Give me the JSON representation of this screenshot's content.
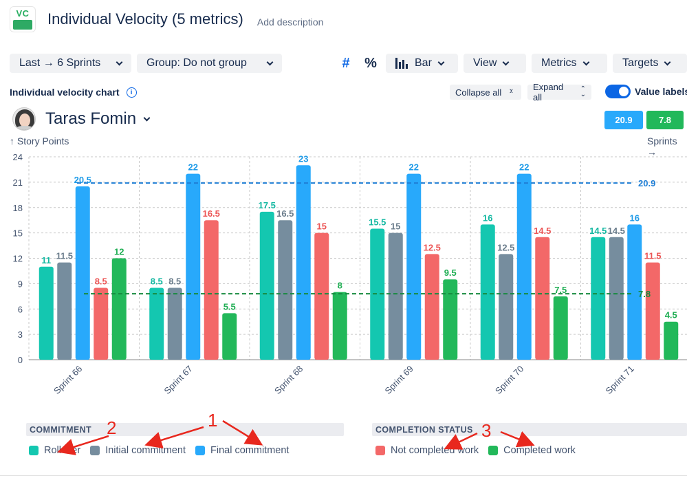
{
  "header": {
    "title": "Individual Velocity (5 metrics)",
    "add_description": "Add description",
    "logo_text": "VC"
  },
  "toolbar": {
    "range_label": "Last → 6 Sprints",
    "group_label": "Group: Do not group",
    "hash_icon": "#",
    "percent_icon": "%",
    "chart_type_label": "Bar",
    "view_label": "View",
    "metrics_label": "Metrics",
    "targets_label": "Targets"
  },
  "subheader": {
    "chart_title": "Individual velocity chart",
    "collapse_all": "Collapse all",
    "expand_all": "Expand all",
    "value_labels": "Value labels"
  },
  "person": {
    "name": "Taras Fomin"
  },
  "averages": {
    "final_commitment_avg": "20.9",
    "completed_avg": "7.8"
  },
  "colors": {
    "rollover": "#14c7b0",
    "initial": "#768d9e",
    "final": "#28a9fb",
    "not_completed": "#f36868",
    "completed": "#22b85a"
  },
  "chart_data": {
    "type": "bar",
    "title": "Individual velocity chart",
    "ylabel": "↑ Story Points",
    "xlabel": "Sprints →",
    "ylim": [
      0,
      24
    ],
    "yticks": [
      0,
      3,
      6,
      9,
      12,
      15,
      18,
      21,
      24
    ],
    "categories": [
      "Sprint 66",
      "Sprint 67",
      "Sprint 68",
      "Sprint 69",
      "Sprint 70",
      "Sprint 71"
    ],
    "series": [
      {
        "name": "Rollover",
        "group": "Commitment",
        "color": "#14c7b0",
        "label_color": "#14b8a2",
        "values": [
          11,
          8.5,
          17.5,
          15.5,
          16,
          14.5
        ]
      },
      {
        "name": "Initial commitment",
        "group": "Commitment",
        "color": "#768d9e",
        "label_color": "#6b7d8c",
        "values": [
          11.5,
          8.5,
          16.5,
          15,
          12.5,
          14.5
        ]
      },
      {
        "name": "Final commitment",
        "group": "Commitment",
        "color": "#28a9fb",
        "label_color": "#1f9be8",
        "values": [
          20.5,
          22,
          23,
          22,
          22,
          16
        ]
      },
      {
        "name": "Not completed work",
        "group": "Completion status",
        "color": "#f36868",
        "label_color": "#ec5555",
        "values": [
          8.5,
          16.5,
          15,
          12.5,
          14.5,
          11.5
        ]
      },
      {
        "name": "Completed work",
        "group": "Completion status",
        "color": "#22b85a",
        "label_color": "#1fae53",
        "values": [
          12,
          5.5,
          8,
          9.5,
          7.5,
          4.5
        ]
      }
    ],
    "reference_lines": [
      {
        "value": 20.9,
        "label": "20.9",
        "color": "#1f7fd6"
      },
      {
        "value": 7.8,
        "label": "7.8",
        "color": "#168a3f"
      }
    ],
    "grid": true
  },
  "legend": {
    "commitment_heading": "COMMITMENT",
    "completion_heading": "COMPLETION STATUS",
    "items": [
      "Rollover",
      "Initial commitment",
      "Final commitment",
      "Not completed work",
      "Completed work"
    ]
  },
  "annotations": [
    "1",
    "2",
    "3"
  ]
}
